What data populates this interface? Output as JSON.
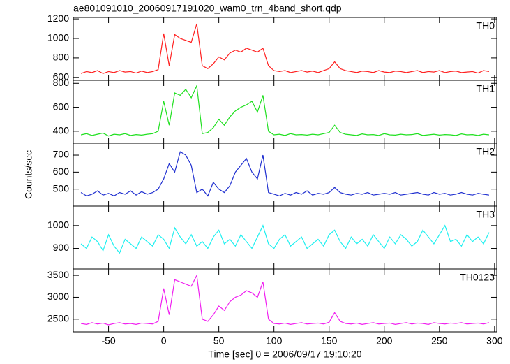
{
  "chart_data": [
    {
      "type": "line",
      "title": "ae801091010_20060917191020_wam0_trn_4band_short.qdp",
      "x": [
        -75,
        -70,
        -65,
        -60,
        -55,
        -50,
        -45,
        -40,
        -35,
        -30,
        -25,
        -20,
        -15,
        -10,
        -5,
        0,
        5,
        10,
        15,
        20,
        25,
        30,
        35,
        40,
        45,
        50,
        55,
        60,
        65,
        70,
        75,
        80,
        85,
        90,
        95,
        100,
        105,
        110,
        115,
        120,
        125,
        130,
        135,
        140,
        145,
        150,
        155,
        160,
        165,
        170,
        175,
        180,
        185,
        190,
        195,
        200,
        205,
        210,
        215,
        220,
        225,
        230,
        235,
        240,
        245,
        250,
        255,
        260,
        265,
        270,
        275,
        280,
        285,
        290,
        295
      ],
      "series": [
        {
          "name": "TH0",
          "color": "#ff2020",
          "values": [
            640,
            660,
            650,
            670,
            640,
            660,
            650,
            670,
            655,
            660,
            645,
            665,
            650,
            660,
            680,
            1050,
            720,
            1040,
            1000,
            980,
            960,
            1150,
            720,
            690,
            740,
            810,
            780,
            850,
            880,
            860,
            900,
            880,
            860,
            900,
            720,
            670,
            660,
            670,
            650,
            660,
            670,
            655,
            665,
            650,
            670,
            690,
            760,
            690,
            670,
            660,
            650,
            665,
            660,
            650,
            670,
            655,
            650,
            665,
            660,
            650,
            660,
            670,
            650,
            660,
            655,
            670,
            650,
            660,
            665,
            650,
            655,
            660,
            645,
            670,
            660
          ]
        }
      ],
      "xlim": [
        -82,
        302
      ],
      "ylim": [
        570,
        1215
      ],
      "yticks": [
        600,
        800,
        1000,
        1200
      ]
    },
    {
      "type": "line",
      "x": [
        -75,
        -70,
        -65,
        -60,
        -55,
        -50,
        -45,
        -40,
        -35,
        -30,
        -25,
        -20,
        -15,
        -10,
        -5,
        0,
        5,
        10,
        15,
        20,
        25,
        30,
        35,
        40,
        45,
        50,
        55,
        60,
        65,
        70,
        75,
        80,
        85,
        90,
        95,
        100,
        105,
        110,
        115,
        120,
        125,
        130,
        135,
        140,
        145,
        150,
        155,
        160,
        165,
        170,
        175,
        180,
        185,
        190,
        195,
        200,
        205,
        210,
        215,
        220,
        225,
        230,
        235,
        240,
        245,
        250,
        255,
        260,
        265,
        270,
        275,
        280,
        285,
        290,
        295
      ],
      "series": [
        {
          "name": "TH1",
          "color": "#20e020",
          "values": [
            370,
            380,
            365,
            375,
            385,
            360,
            375,
            370,
            380,
            365,
            372,
            368,
            375,
            380,
            400,
            650,
            450,
            720,
            700,
            750,
            680,
            780,
            380,
            390,
            430,
            500,
            450,
            520,
            570,
            600,
            620,
            650,
            560,
            700,
            400,
            370,
            375,
            365,
            380,
            370,
            372,
            368,
            375,
            370,
            380,
            390,
            450,
            390,
            375,
            370,
            365,
            378,
            370,
            372,
            365,
            380,
            370,
            368,
            375,
            370,
            372,
            380,
            365,
            370,
            375,
            368,
            372,
            370,
            365,
            378,
            370,
            372,
            365,
            375,
            370
          ]
        }
      ],
      "xlim": [
        -82,
        302
      ],
      "ylim": [
        300,
        825
      ],
      "yticks": [
        400,
        600,
        800
      ]
    },
    {
      "type": "line",
      "ylabel": "Counts/sec",
      "x": [
        -75,
        -70,
        -65,
        -60,
        -55,
        -50,
        -45,
        -40,
        -35,
        -30,
        -25,
        -20,
        -15,
        -10,
        -5,
        0,
        5,
        10,
        15,
        20,
        25,
        30,
        35,
        40,
        45,
        50,
        55,
        60,
        65,
        70,
        75,
        80,
        85,
        90,
        95,
        100,
        105,
        110,
        115,
        120,
        125,
        130,
        135,
        140,
        145,
        150,
        155,
        160,
        165,
        170,
        175,
        180,
        185,
        190,
        195,
        200,
        205,
        210,
        215,
        220,
        225,
        230,
        235,
        240,
        245,
        250,
        255,
        260,
        265,
        270,
        275,
        280,
        285,
        290,
        295
      ],
      "series": [
        {
          "name": "TH2",
          "color": "#2030d0",
          "values": [
            480,
            460,
            470,
            490,
            465,
            475,
            460,
            480,
            470,
            490,
            465,
            485,
            470,
            480,
            500,
            560,
            650,
            600,
            720,
            700,
            640,
            480,
            500,
            460,
            540,
            500,
            480,
            520,
            600,
            640,
            680,
            600,
            560,
            700,
            480,
            470,
            460,
            475,
            465,
            480,
            470,
            490,
            465,
            475,
            470,
            480,
            510,
            480,
            470,
            465,
            475,
            470,
            480,
            465,
            470,
            475,
            470,
            480,
            465,
            470,
            475,
            480,
            470,
            465,
            480,
            470,
            475,
            465,
            470,
            480,
            470,
            465,
            475,
            470,
            465
          ]
        }
      ],
      "xlim": [
        -82,
        302
      ],
      "ylim": [
        400,
        770
      ],
      "yticks": [
        500,
        600,
        700
      ]
    },
    {
      "type": "line",
      "x": [
        -75,
        -70,
        -65,
        -60,
        -55,
        -50,
        -45,
        -40,
        -35,
        -30,
        -25,
        -20,
        -15,
        -10,
        -5,
        0,
        5,
        10,
        15,
        20,
        25,
        30,
        35,
        40,
        45,
        50,
        55,
        60,
        65,
        70,
        75,
        80,
        85,
        90,
        95,
        100,
        105,
        110,
        115,
        120,
        125,
        130,
        135,
        140,
        145,
        150,
        155,
        160,
        165,
        170,
        175,
        180,
        185,
        190,
        195,
        200,
        205,
        210,
        215,
        220,
        225,
        230,
        235,
        240,
        245,
        250,
        255,
        260,
        265,
        270,
        275,
        280,
        285,
        290,
        295
      ],
      "series": [
        {
          "name": "TH3",
          "color": "#20f0f0",
          "values": [
            920,
            900,
            950,
            930,
            890,
            960,
            910,
            880,
            940,
            920,
            900,
            950,
            930,
            910,
            960,
            940,
            900,
            990,
            950,
            920,
            960,
            910,
            930,
            900,
            950,
            980,
            920,
            940,
            910,
            960,
            930,
            900,
            950,
            1000,
            920,
            900,
            940,
            960,
            910,
            930,
            950,
            900,
            920,
            940,
            910,
            960,
            980,
            930,
            900,
            950,
            920,
            940,
            910,
            960,
            930,
            900,
            950,
            920,
            960,
            940,
            910,
            930,
            980,
            950,
            920,
            960,
            1000,
            930,
            940,
            910,
            960,
            930,
            950,
            920,
            970
          ]
        }
      ],
      "xlim": [
        -82,
        302
      ],
      "ylim": [
        810,
        1085
      ],
      "yticks": [
        900,
        1000
      ]
    },
    {
      "type": "line",
      "xlabel": "Time [sec] 0 = 2006/09/17 19:10:20",
      "x": [
        -75,
        -70,
        -65,
        -60,
        -55,
        -50,
        -45,
        -40,
        -35,
        -30,
        -25,
        -20,
        -15,
        -10,
        -5,
        0,
        5,
        10,
        15,
        20,
        25,
        30,
        35,
        40,
        45,
        50,
        55,
        60,
        65,
        70,
        75,
        80,
        85,
        90,
        95,
        100,
        105,
        110,
        115,
        120,
        125,
        130,
        135,
        140,
        145,
        150,
        155,
        160,
        165,
        170,
        175,
        180,
        185,
        190,
        195,
        200,
        205,
        210,
        215,
        220,
        225,
        230,
        235,
        240,
        245,
        250,
        255,
        260,
        265,
        270,
        275,
        280,
        285,
        290,
        295
      ],
      "series": [
        {
          "name": "TH0123",
          "color": "#f020f0",
          "values": [
            2400,
            2380,
            2420,
            2390,
            2410,
            2370,
            2400,
            2420,
            2390,
            2400,
            2380,
            2410,
            2400,
            2390,
            2450,
            3200,
            2600,
            3400,
            3350,
            3300,
            3250,
            3500,
            2500,
            2450,
            2600,
            2800,
            2700,
            2900,
            3000,
            3050,
            3150,
            3100,
            3000,
            3350,
            2500,
            2400,
            2390,
            2410,
            2380,
            2400,
            2420,
            2390,
            2400,
            2410,
            2390,
            2430,
            2650,
            2450,
            2400,
            2390,
            2410,
            2380,
            2400,
            2420,
            2390,
            2400,
            2410,
            2380,
            2400,
            2420,
            2390,
            2410,
            2400,
            2380,
            2420,
            2400,
            2390,
            2410,
            2400,
            2420,
            2390,
            2400,
            2410,
            2390,
            2420
          ]
        }
      ],
      "xlim": [
        -82,
        302
      ],
      "ylim": [
        2210,
        3645
      ],
      "yticks": [
        2500,
        3000,
        3500
      ],
      "xticks": [
        -50,
        0,
        50,
        100,
        150,
        200,
        250,
        300
      ]
    }
  ]
}
